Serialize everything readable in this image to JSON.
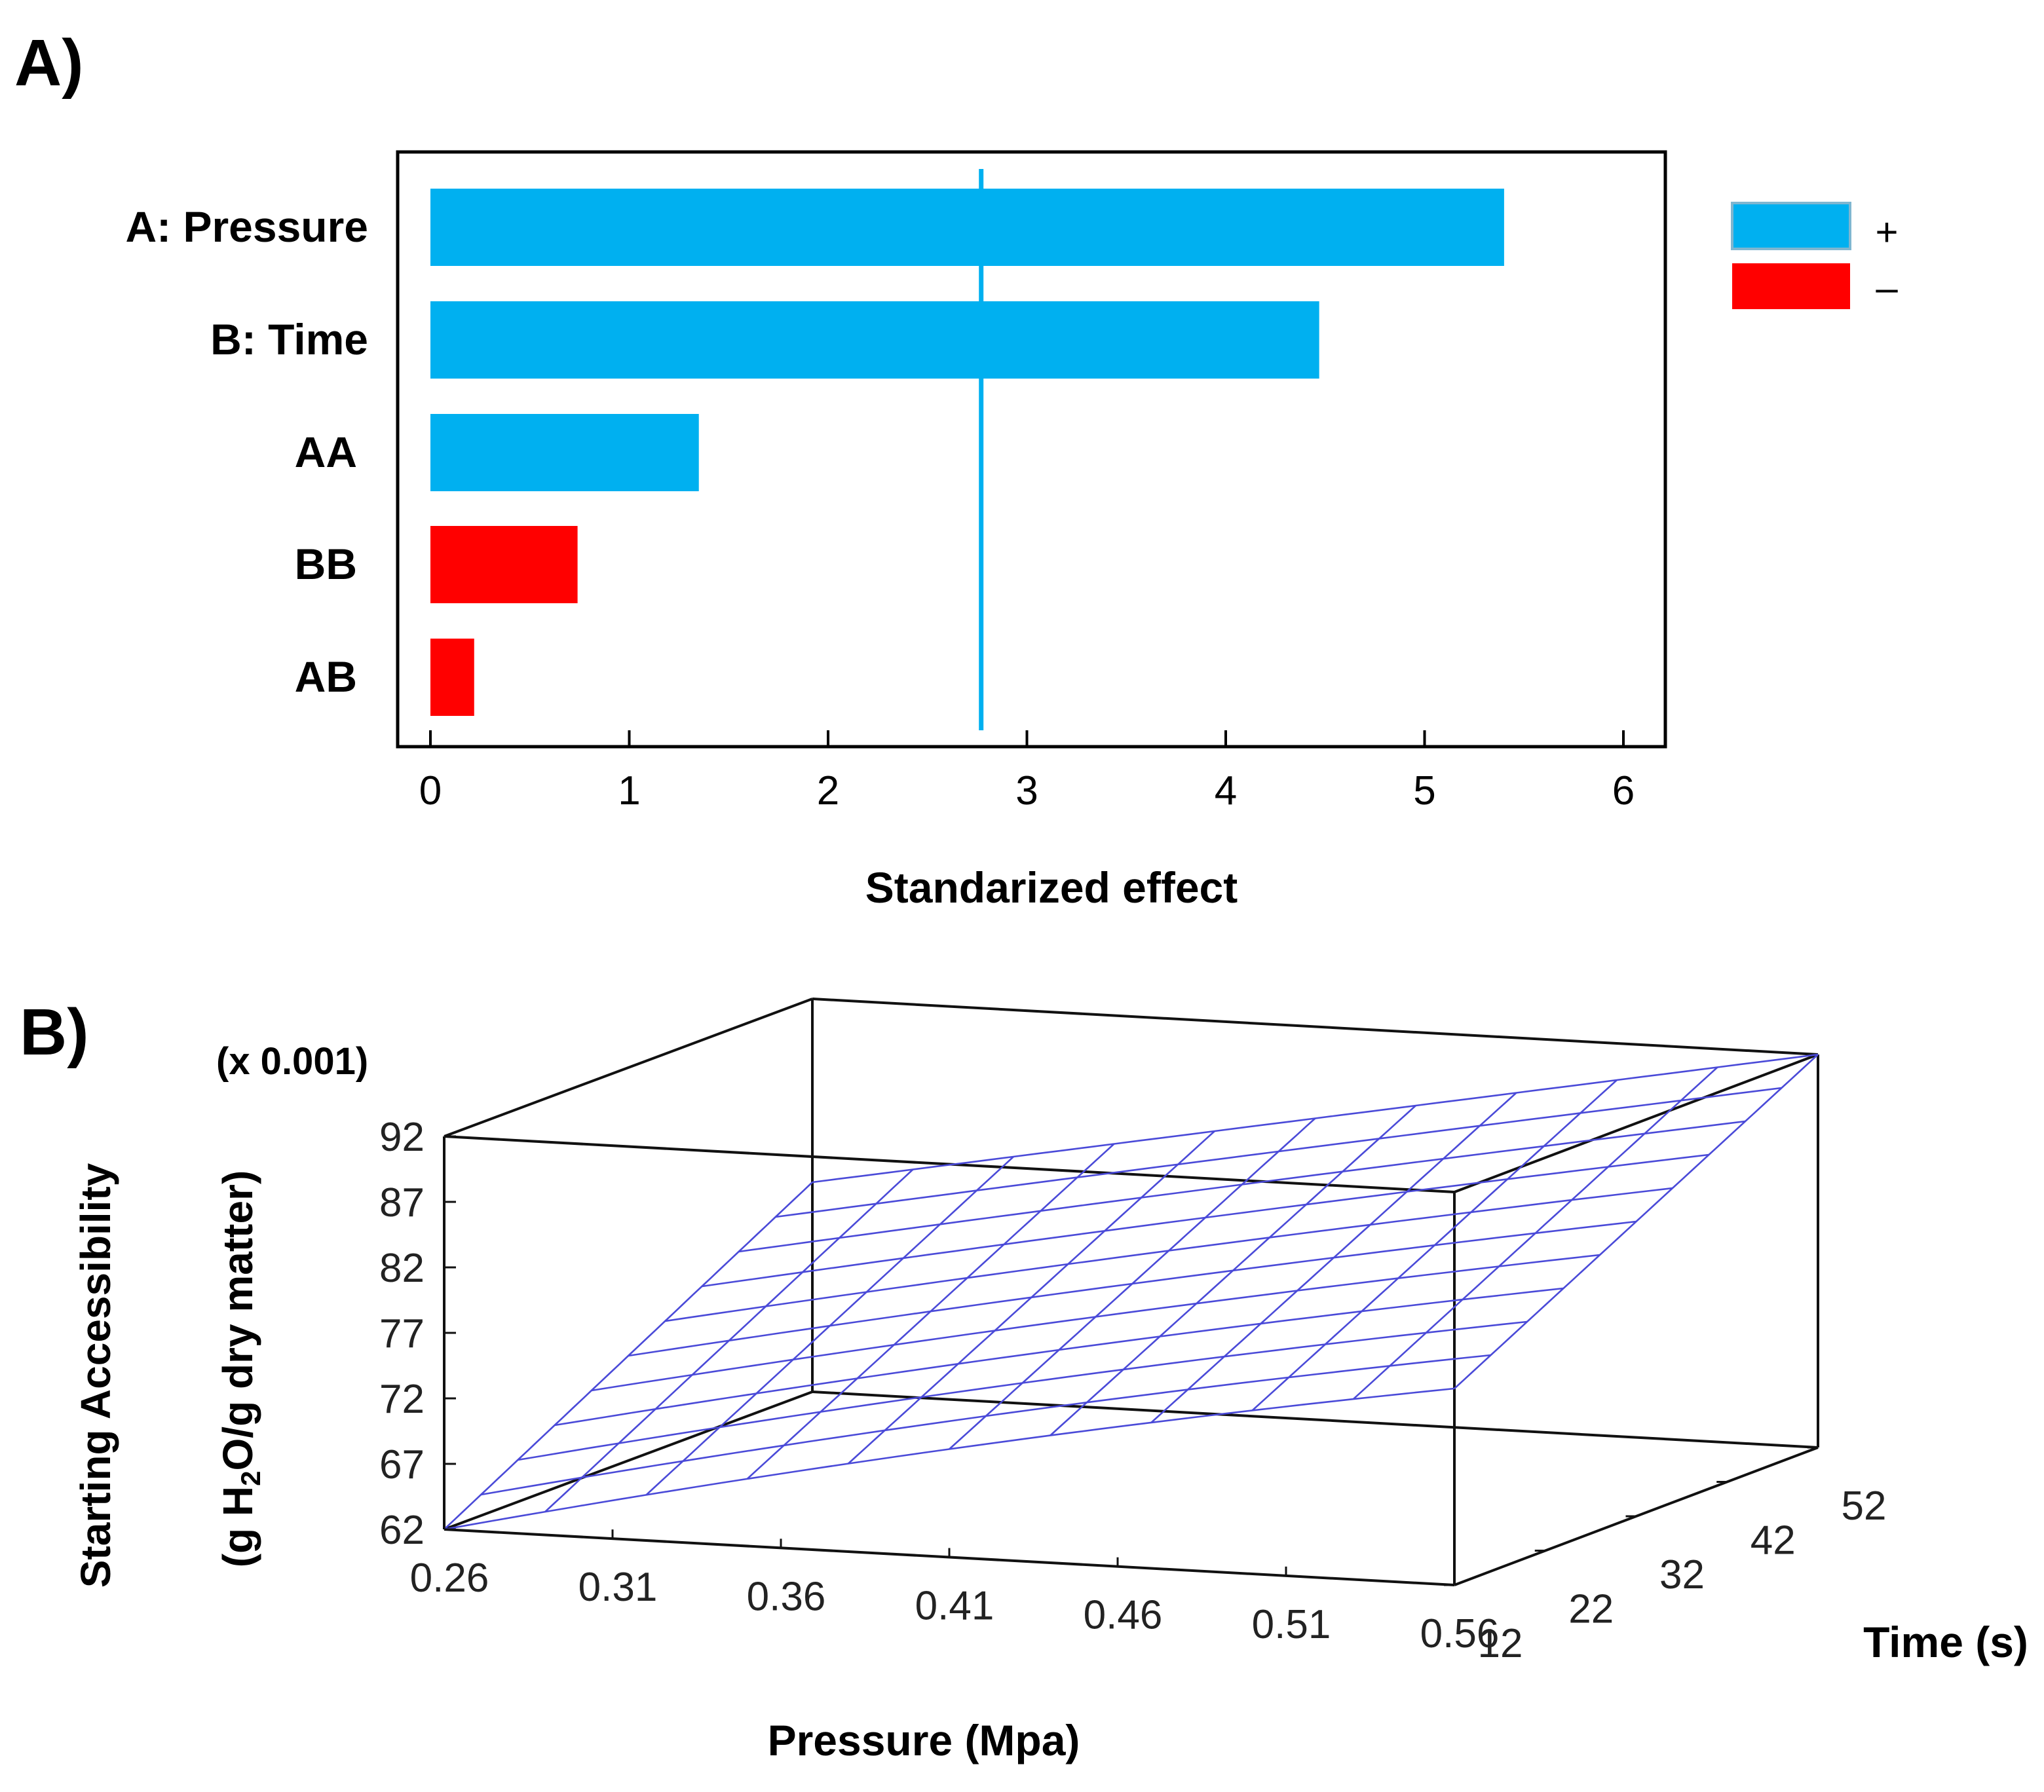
{
  "panel_a_label": "A)",
  "panel_b_label": "B)",
  "chart_data": [
    {
      "type": "bar",
      "orientation": "horizontal",
      "title": "",
      "categories": [
        "A: Pressure",
        "B: Time",
        "AA",
        "BB",
        "AB"
      ],
      "values": [
        5.4,
        4.47,
        1.35,
        0.74,
        0.22
      ],
      "signs": [
        "+",
        "+",
        "+",
        "-",
        "-"
      ],
      "xlabel": "Standarized effect",
      "ylabel": "",
      "xlim": [
        0,
        6
      ],
      "xticks": [
        "0",
        "1",
        "2",
        "3",
        "4",
        "5",
        "6"
      ],
      "reference_line": 2.77,
      "legend": [
        {
          "label": "+",
          "color": "#00b0f0"
        },
        {
          "label": "–",
          "color": "#ff0000"
        }
      ],
      "legend_position": "right",
      "grid": false
    },
    {
      "type": "surface",
      "title": "",
      "x": {
        "label": "Pressure (Mpa)",
        "range": [
          0.26,
          0.56
        ],
        "ticks": [
          "0.26",
          "0.31",
          "0.36",
          "0.41",
          "0.46",
          "0.51",
          "0.56"
        ]
      },
      "y": {
        "label": "Time (s)",
        "range": [
          12,
          52
        ],
        "ticks": [
          "12",
          "22",
          "32",
          "42",
          "52"
        ]
      },
      "z": {
        "label_line1": "Starting Accessibility",
        "label_line2_prefix": "(g H",
        "label_line2_sub": "2",
        "label_line2_suffix": "O/g dry matter)",
        "multiplier": "(x 0.001)",
        "range": [
          62,
          92
        ],
        "ticks": [
          "62",
          "67",
          "72",
          "77",
          "82",
          "87",
          "92"
        ]
      },
      "corner_values_x0.001": {
        "p0.26_t12": 62,
        "p0.56_t12": 77,
        "p0.26_t52": 78,
        "p0.56_t52": 92
      },
      "mesh_color": "#4a4ad8",
      "grid_divisions": 10
    }
  ]
}
